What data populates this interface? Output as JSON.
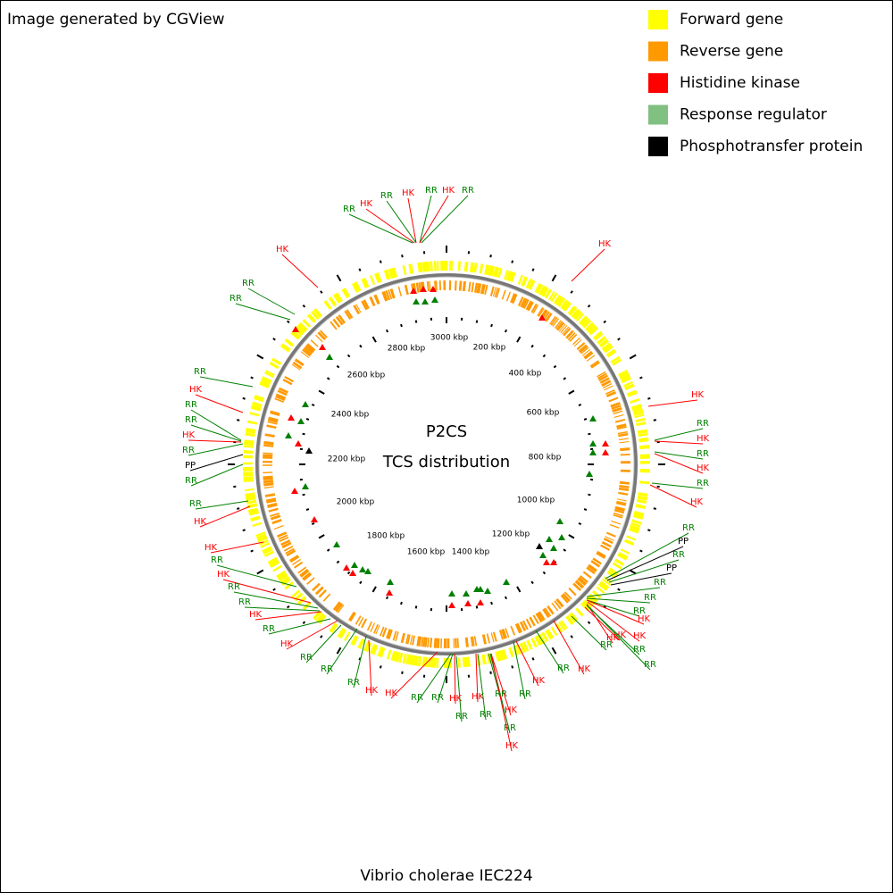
{
  "header": {
    "credit": "Image generated by CGView"
  },
  "legend": [
    {
      "label": "Forward gene",
      "color": "#ffff00"
    },
    {
      "label": "Reverse gene",
      "color": "#ff9900"
    },
    {
      "label": "Histidine kinase",
      "color": "#ff0000"
    },
    {
      "label": "Response regulator",
      "color": "#80c080"
    },
    {
      "label": "Phosphotransfer protein",
      "color": "#000000"
    }
  ],
  "map": {
    "title": "P2CS",
    "subtitle": "TCS distribution",
    "ticks": [
      "3000 kbp",
      "200 kbp",
      "400 kbp",
      "600 kbp",
      "800 kbp",
      "1000 kbp",
      "1200 kbp",
      "1400 kbp",
      "1600 kbp",
      "1800 kbp",
      "2000 kbp",
      "2200 kbp",
      "2400 kbp",
      "2600 kbp",
      "2800 kbp"
    ],
    "features": [
      "RR",
      "HK",
      "RR",
      "HK",
      "RR",
      "HK",
      "RR",
      "HK",
      "HK",
      "RR",
      "RR",
      "RR",
      "HK",
      "RR",
      "RR",
      "HK",
      "RR",
      "PP",
      "RR",
      "RR",
      "HK",
      "HK",
      "RR",
      "HK",
      "RR",
      "RR",
      "HK",
      "RR",
      "HK",
      "RR",
      "RR",
      "RR",
      "HK",
      "HK",
      "RR",
      "RR",
      "HK",
      "RR",
      "HK",
      "RR",
      "RR",
      "HK",
      "RR",
      "HK",
      "RR",
      "HK",
      "RR",
      "HK",
      "RR",
      "HK",
      "RR",
      "PP",
      "RR",
      "PP",
      "RR",
      "RR",
      "RR",
      "HK",
      "HK",
      "HK",
      "RR",
      "RR",
      "HK",
      "RR",
      "HK",
      "RR",
      "HK",
      "RR",
      "HK"
    ]
  },
  "footer": "Vibrio cholerae IEC224"
}
